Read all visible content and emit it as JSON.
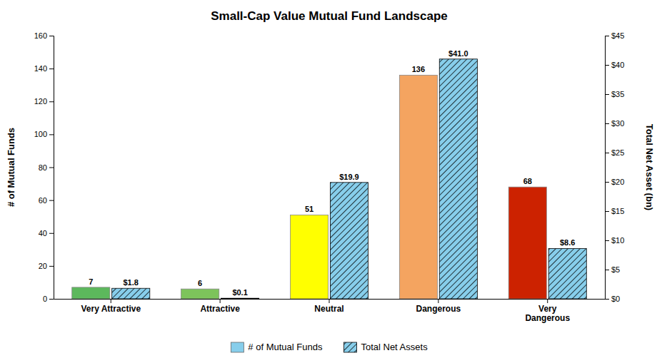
{
  "chart_data": {
    "type": "bar",
    "title": "Small-Cap Value Mutual Fund Landscape",
    "categories": [
      "Very Attractive",
      "Attractive",
      "Neutral",
      "Dangerous",
      "Very\nDangerous"
    ],
    "series": [
      {
        "name": "# of Mutual Funds",
        "color": "#87CEEB",
        "colors": [
          "#5cb85c",
          "#7dc35b",
          "#ffff00",
          "#f4a460",
          "#cc2200"
        ],
        "values": [
          7,
          6,
          51,
          136,
          68
        ]
      },
      {
        "name": "Total Net Assets",
        "color": "#87CEEB",
        "axis": "y2",
        "values": [
          1.8,
          0.1,
          19.9,
          41.0,
          8.6
        ],
        "value_labels": [
          "$1.8",
          "$0.1",
          "$19.9",
          "$41.0",
          "$8.6"
        ]
      }
    ],
    "ylabel": "# of Mutual Funds",
    "y2label": "Total Net Asset (bn)",
    "ylim": [
      0,
      160
    ],
    "yticks": [
      0,
      20,
      40,
      60,
      80,
      100,
      120,
      140,
      160
    ],
    "y2lim": [
      0,
      45
    ],
    "y2ticks": [
      {
        "value": 0,
        "label": "$0"
      },
      {
        "value": 5,
        "label": "$5"
      },
      {
        "value": 10,
        "label": "$10"
      },
      {
        "value": 15,
        "label": "$15"
      },
      {
        "value": 20,
        "label": "$20"
      },
      {
        "value": 25,
        "label": "$25"
      },
      {
        "value": 30,
        "label": "$30"
      },
      {
        "value": 35,
        "label": "$35"
      },
      {
        "value": 40,
        "label": "$40"
      },
      {
        "value": 45,
        "label": "$45"
      }
    ],
    "grid": false,
    "legend": "bottom",
    "data_labels": true
  }
}
